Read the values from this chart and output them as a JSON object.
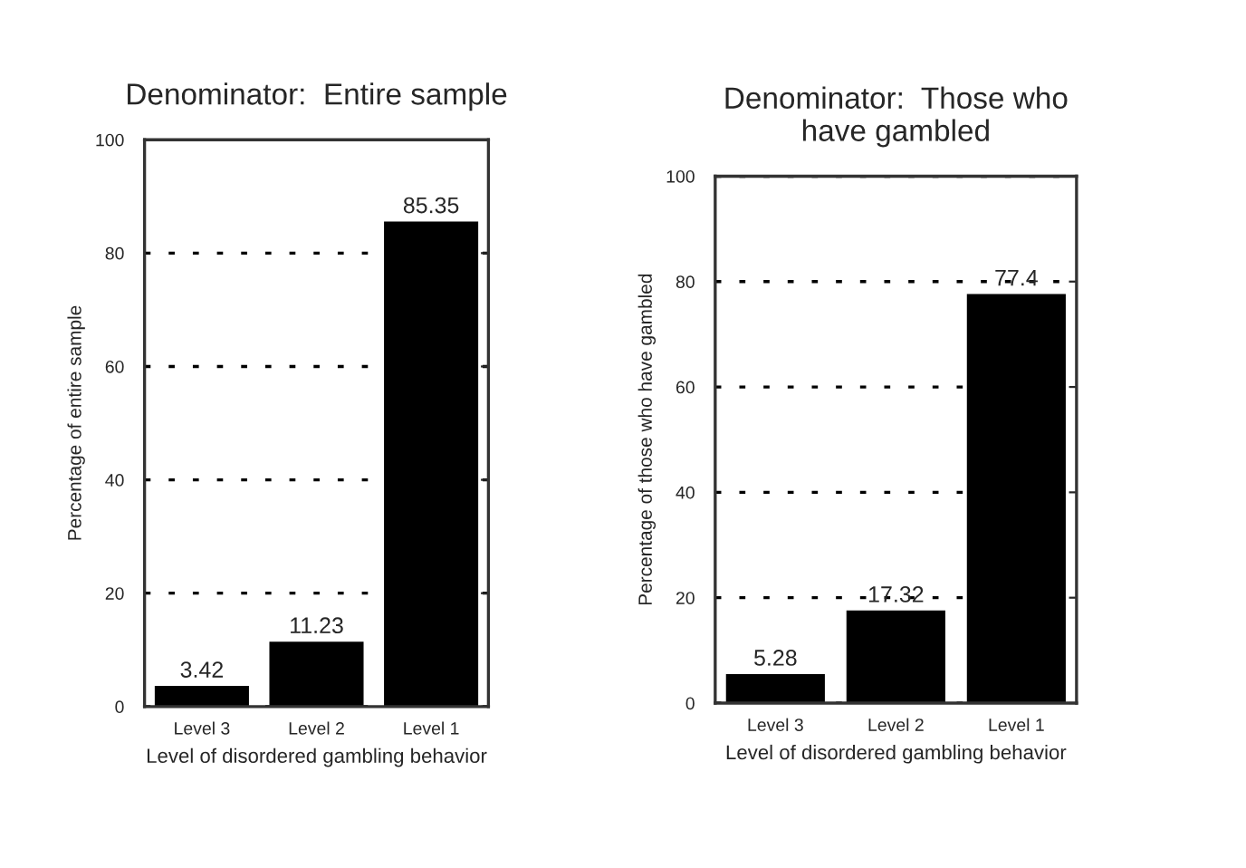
{
  "chart_data": [
    {
      "type": "bar",
      "title": "Denominator:  Entire sample",
      "xlabel": "Level of disordered gambling behavior",
      "ylabel": "Percentage of entire sample",
      "categories": [
        "Level 3",
        "Level 2",
        "Level 1"
      ],
      "values": [
        3.42,
        11.23,
        85.35
      ],
      "color": "#000000",
      "ylim": [
        0,
        100
      ],
      "yticks": [
        0,
        20,
        40,
        60,
        80,
        100
      ],
      "grid": "y",
      "line_style": "dotted",
      "data_labels": true
    },
    {
      "type": "bar",
      "title": "Denominator:  Those who\nhave gambled",
      "xlabel": "Level of disordered gambling behavior",
      "ylabel": "Percentage of those who have gambled",
      "categories": [
        "Level 3",
        "Level 2",
        "Level 1"
      ],
      "values": [
        5.28,
        17.32,
        77.4
      ],
      "color": "#000000",
      "ylim": [
        0,
        100
      ],
      "yticks": [
        0,
        20,
        40,
        60,
        80,
        100
      ],
      "grid": "y",
      "line_style": "dotted",
      "data_labels": true
    }
  ]
}
